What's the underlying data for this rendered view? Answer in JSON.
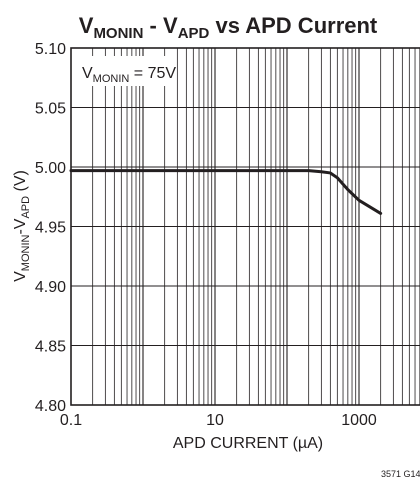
{
  "chart_data": {
    "type": "line",
    "title": {
      "v1": "V",
      "v1_sub": "MONIN",
      "dash": " - ",
      "v2": "V",
      "v2_sub": "APD",
      "rest": " vs APD Current"
    },
    "xlabel": "APD CURRENT (µA)",
    "ylabel": {
      "v1": "V",
      "v1_sub": "MONIN",
      "mid": "-V",
      "v2_sub": "APD",
      "unit": " (V)"
    },
    "annotation": {
      "v": "V",
      "sub": "MONIN",
      "rest": " = 75V"
    },
    "x_scale": "log",
    "xlim": [
      0.1,
      10000
    ],
    "ylim": [
      4.8,
      5.1
    ],
    "x_ticks": [
      {
        "value": 0.1,
        "label": "0.1"
      },
      {
        "value": 10,
        "label": "10"
      },
      {
        "value": 1000,
        "label": "1000"
      }
    ],
    "y_ticks": [
      {
        "value": 5.1,
        "label": "5.10"
      },
      {
        "value": 5.05,
        "label": "5.05"
      },
      {
        "value": 5.0,
        "label": "5.00"
      },
      {
        "value": 4.95,
        "label": "4.95"
      },
      {
        "value": 4.9,
        "label": "4.90"
      },
      {
        "value": 4.85,
        "label": "4.85"
      },
      {
        "value": 4.8,
        "label": "4.80"
      }
    ],
    "grid": true,
    "series": [
      {
        "color": "#231f20",
        "x": [
          0.1,
          1,
          10,
          100,
          200,
          300,
          400,
          500,
          700,
          1000,
          2000
        ],
        "y": [
          4.997,
          4.997,
          4.997,
          4.997,
          4.997,
          4.996,
          4.995,
          4.991,
          4.981,
          4.972,
          4.961
        ]
      }
    ],
    "figure_id": "3571 G14"
  }
}
